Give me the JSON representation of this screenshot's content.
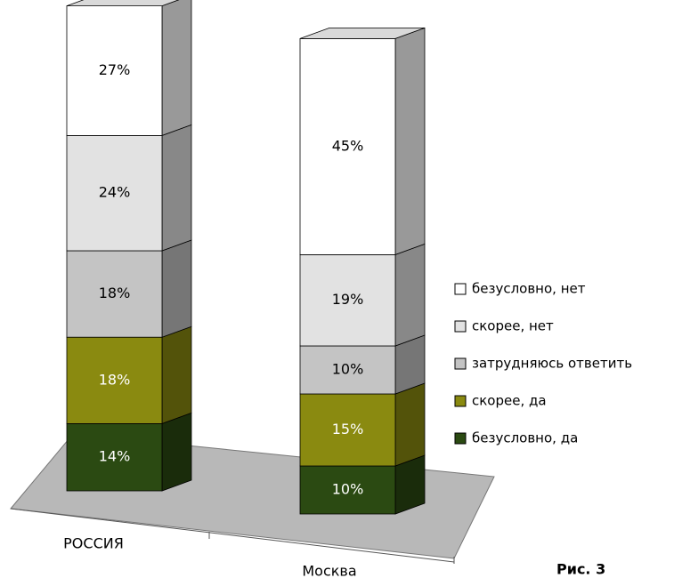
{
  "chart_data": {
    "type": "stacked-bar-3d",
    "categories": [
      "РОССИЯ",
      "Москва"
    ],
    "series": [
      {
        "name": "безусловно, да",
        "color": "#2b4a12",
        "values": [
          14,
          10
        ],
        "value_labels": [
          "14%",
          "10%"
        ]
      },
      {
        "name": "скорее, да",
        "color": "#8a8a10",
        "values": [
          18,
          15
        ],
        "value_labels": [
          "18%",
          "15%"
        ]
      },
      {
        "name": "затрудняюсь ответить",
        "color": "#c4c4c4",
        "values": [
          18,
          10
        ],
        "value_labels": [
          "18%",
          "10%"
        ]
      },
      {
        "name": "скорее, нет",
        "color": "#e2e2e2",
        "values": [
          24,
          19
        ],
        "value_labels": [
          "24%",
          "19%"
        ]
      },
      {
        "name": "безусловно, нет",
        "color": "#ffffff",
        "values": [
          27,
          45
        ],
        "value_labels": [
          "27%",
          "45%"
        ]
      }
    ],
    "caption": "Рис. 3"
  }
}
